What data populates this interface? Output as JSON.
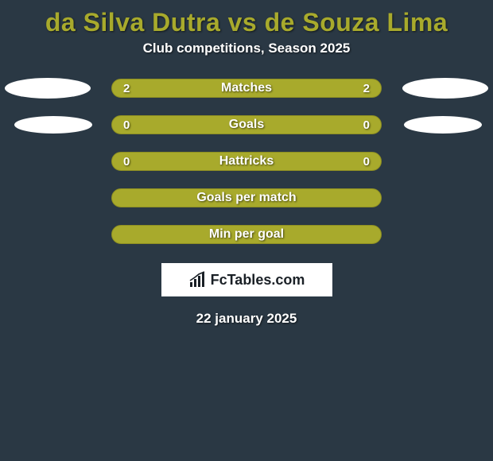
{
  "title": "da Silva Dutra vs de Souza Lima",
  "subtitle": "Club competitions, Season 2025",
  "colors": {
    "bar_fill": "#a8aa2c",
    "bar_border": "#8e8f22",
    "background": "#2a3844"
  },
  "rows": [
    {
      "label": "Matches",
      "left": "2",
      "right": "2",
      "has_values": true,
      "side_ellipses": "large"
    },
    {
      "label": "Goals",
      "left": "0",
      "right": "0",
      "has_values": true,
      "side_ellipses": "small"
    },
    {
      "label": "Hattricks",
      "left": "0",
      "right": "0",
      "has_values": true,
      "side_ellipses": "none"
    },
    {
      "label": "Goals per match",
      "left": "",
      "right": "",
      "has_values": false,
      "side_ellipses": "none"
    },
    {
      "label": "Min per goal",
      "left": "",
      "right": "",
      "has_values": false,
      "side_ellipses": "none"
    }
  ],
  "brand": "FcTables.com",
  "date": "22 january 2025"
}
